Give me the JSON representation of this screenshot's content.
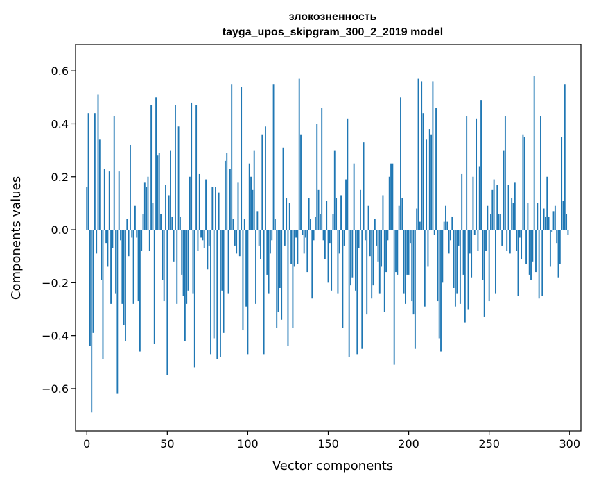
{
  "chart_data": {
    "type": "bar",
    "title": "злокозненность",
    "subtitle": "tayga_upos_skipgram_300_2_2019 model",
    "xlabel": "Vector components",
    "ylabel": "Components values",
    "xlim": [
      -7,
      307
    ],
    "ylim": [
      -0.76,
      0.7
    ],
    "xticks": [
      0,
      50,
      100,
      150,
      200,
      250,
      300
    ],
    "yticks": [
      -0.6,
      -0.4,
      -0.2,
      0.0,
      0.2,
      0.4,
      0.6
    ],
    "ytick_labels": [
      "−0.6",
      "−0.4",
      "−0.2",
      "0.0",
      "0.2",
      "0.4",
      "0.6"
    ],
    "color": "#1f77b4",
    "values": [
      0.16,
      0.44,
      -0.44,
      -0.69,
      -0.39,
      0.44,
      -0.09,
      0.51,
      0.34,
      -0.19,
      -0.49,
      0.23,
      -0.05,
      -0.14,
      0.22,
      -0.28,
      -0.07,
      0.43,
      -0.24,
      -0.62,
      0.22,
      -0.04,
      -0.28,
      -0.36,
      -0.42,
      0.04,
      -0.1,
      0.32,
      -0.03,
      -0.28,
      0.09,
      -0.03,
      -0.27,
      -0.46,
      -0.08,
      0.06,
      0.18,
      0.16,
      0.2,
      -0.08,
      0.47,
      0.1,
      -0.43,
      0.5,
      0.28,
      0.29,
      0.06,
      -0.19,
      -0.27,
      0.17,
      -0.55,
      0.13,
      0.3,
      0.05,
      -0.12,
      0.47,
      -0.28,
      0.39,
      0.05,
      -0.17,
      -0.25,
      -0.42,
      -0.28,
      -0.23,
      0.2,
      0.48,
      -0.24,
      -0.52,
      0.47,
      -0.08,
      0.21,
      -0.03,
      -0.04,
      -0.07,
      0.19,
      -0.15,
      -0.06,
      -0.47,
      0.16,
      -0.41,
      0.16,
      -0.49,
      0.14,
      -0.48,
      -0.23,
      -0.39,
      0.26,
      0.29,
      -0.24,
      0.23,
      0.55,
      0.04,
      -0.06,
      -0.09,
      0.18,
      -0.1,
      0.54,
      -0.38,
      0.04,
      -0.29,
      -0.47,
      0.25,
      0.2,
      0.15,
      0.3,
      -0.28,
      0.07,
      -0.06,
      -0.11,
      0.36,
      -0.47,
      0.39,
      -0.17,
      -0.24,
      -0.09,
      -0.04,
      0.55,
      0.04,
      -0.37,
      -0.31,
      -0.22,
      -0.34,
      0.31,
      -0.06,
      0.12,
      -0.44,
      0.1,
      -0.13,
      -0.37,
      -0.14,
      -0.03,
      -0.13,
      0.57,
      0.36,
      -0.02,
      -0.09,
      -0.03,
      -0.16,
      0.12,
      0.04,
      -0.26,
      -0.04,
      0.05,
      0.4,
      0.15,
      0.06,
      0.46,
      -0.04,
      -0.11,
      0.11,
      -0.2,
      -0.05,
      -0.23,
      0.06,
      0.3,
      0.12,
      -0.24,
      -0.09,
      0.13,
      -0.37,
      -0.06,
      0.19,
      0.42,
      -0.48,
      -0.21,
      -0.18,
      0.25,
      -0.23,
      -0.47,
      -0.07,
      0.15,
      -0.45,
      0.33,
      -0.04,
      -0.32,
      0.09,
      -0.1,
      -0.26,
      -0.21,
      0.04,
      -0.06,
      -0.12,
      -0.24,
      -0.14,
      0.13,
      -0.31,
      -0.16,
      -0.04,
      0.2,
      0.25,
      0.25,
      -0.51,
      -0.16,
      -0.17,
      0.09,
      0.5,
      0.12,
      -0.24,
      -0.28,
      -0.17,
      -0.17,
      -0.05,
      -0.27,
      -0.32,
      -0.45,
      0.08,
      0.57,
      0.03,
      0.56,
      0.44,
      -0.29,
      0.34,
      -0.14,
      0.38,
      0.36,
      0.56,
      -0.02,
      0.46,
      -0.27,
      -0.41,
      -0.46,
      -0.2,
      0.03,
      0.09,
      0.03,
      -0.09,
      -0.04,
      0.05,
      -0.22,
      -0.29,
      -0.24,
      -0.06,
      -0.28,
      0.21,
      -0.17,
      -0.35,
      0.43,
      -0.3,
      -0.09,
      -0.18,
      0.2,
      -0.02,
      0.42,
      -0.08,
      0.24,
      0.49,
      -0.19,
      -0.33,
      -0.08,
      0.09,
      -0.27,
      0.06,
      0.15,
      0.19,
      -0.24,
      0.17,
      0.06,
      0.06,
      -0.06,
      0.3,
      0.43,
      -0.08,
      0.17,
      -0.09,
      0.12,
      0.1,
      0.18,
      -0.08,
      -0.25,
      -0.03,
      -0.11,
      0.36,
      0.35,
      -0.13,
      0.1,
      -0.17,
      -0.19,
      -0.12,
      0.58,
      -0.16,
      0.1,
      -0.26,
      0.43,
      -0.25,
      0.08,
      0.05,
      0.2,
      0.05,
      -0.14,
      -0.01,
      0.07,
      0.09,
      -0.05,
      -0.18,
      -0.13,
      0.35,
      0.11,
      0.55,
      0.06,
      -0.02
    ]
  }
}
